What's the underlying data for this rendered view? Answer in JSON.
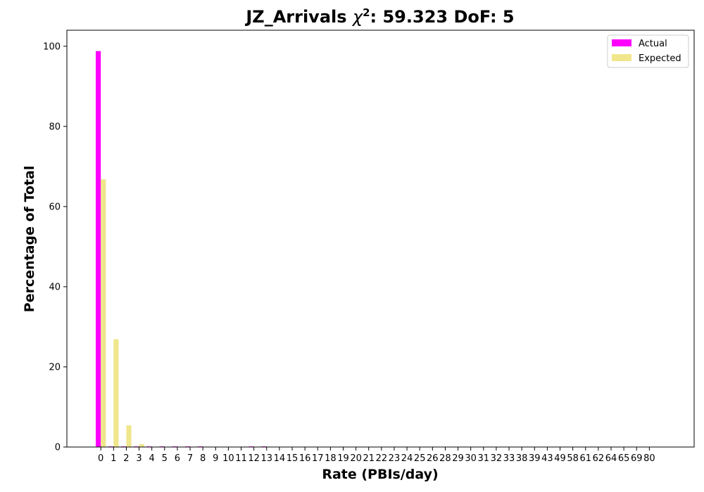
{
  "chart_data": {
    "type": "bar",
    "title_prefix": "JZ_Arrivals ",
    "title_chi": "χ",
    "title_sup": "2",
    "title_suffix": ": 59.323 DoF: 5",
    "xlabel": "Rate (PBIs/day)",
    "ylabel": "Percentage of Total",
    "ylim": [
      0,
      104
    ],
    "yticks": [
      0,
      20,
      40,
      60,
      80,
      100
    ],
    "grid": false,
    "legend_position": "top-right",
    "categories": [
      "0",
      "1",
      "2",
      "3",
      "4",
      "5",
      "6",
      "7",
      "8",
      "9",
      "10",
      "11",
      "12",
      "13",
      "14",
      "15",
      "16",
      "17",
      "18",
      "19",
      "20",
      "21",
      "22",
      "23",
      "24",
      "25",
      "26",
      "28",
      "29",
      "30",
      "31",
      "32",
      "33",
      "38",
      "39",
      "43",
      "49",
      "58",
      "61",
      "62",
      "64",
      "65",
      "69",
      "80"
    ],
    "series": [
      {
        "name": "Actual",
        "color": "#ff00ff",
        "values": [
          98.8,
          0.15,
          0.15,
          0.15,
          0.15,
          0.15,
          0.15,
          0.15,
          0.15,
          0.05,
          0.05,
          0.05,
          0.15,
          0.15,
          0.05,
          0.05,
          0.05,
          0.05,
          0.05,
          0.05,
          0.05,
          0.05,
          0.05,
          0.05,
          0.05,
          0.05,
          0.05,
          0.05,
          0.05,
          0.05,
          0.05,
          0.05,
          0.05,
          0.05,
          0.05,
          0.05,
          0.05,
          0.05,
          0.05,
          0.05,
          0.05,
          0.05,
          0.05,
          0.05
        ]
      },
      {
        "name": "Expected",
        "color": "#f0e68c",
        "values": [
          66.8,
          26.9,
          5.4,
          0.72,
          0.07,
          0.01,
          0,
          0,
          0,
          0,
          0,
          0,
          0,
          0,
          0,
          0,
          0,
          0,
          0,
          0,
          0,
          0,
          0,
          0,
          0,
          0,
          0,
          0,
          0,
          0,
          0,
          0,
          0,
          0,
          0,
          0,
          0,
          0,
          0,
          0,
          0,
          0,
          0,
          0
        ]
      }
    ]
  }
}
